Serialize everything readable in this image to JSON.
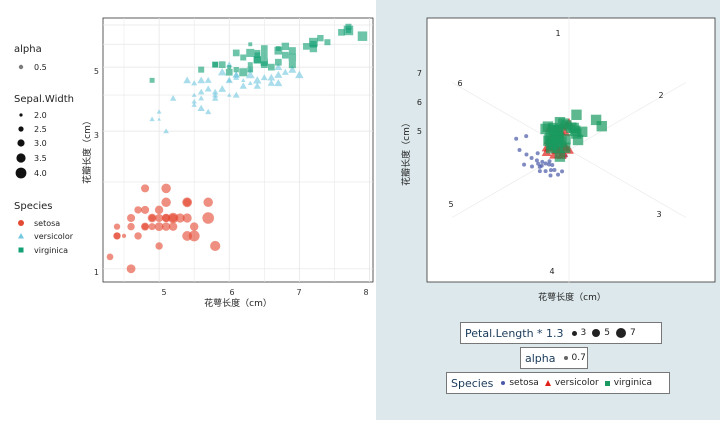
{
  "left_chart": {
    "xlabel": "花萼长度（cm）",
    "ylabel": "花瓣长度（cm）",
    "xticks": [
      "5",
      "6",
      "7",
      "8"
    ],
    "yticks": [
      "1",
      "3",
      "5"
    ],
    "legend": {
      "alpha_title": "alpha",
      "alpha_value": "0.5",
      "size_title": "Sepal.Width",
      "size_labels": [
        "2.0",
        "2.5",
        "3.0",
        "3.5",
        "4.0"
      ],
      "species_title": "Species",
      "species_labels": [
        "setosa",
        "versicolor",
        "virginica"
      ]
    }
  },
  "right_chart": {
    "xlabel": "花萼长度（cm）",
    "ylabel": "花瓣长度（cm）",
    "radial_labels": [
      "1",
      "2",
      "3",
      "4",
      "5",
      "6"
    ],
    "yticks": [
      "5",
      "6",
      "7"
    ],
    "legend_size": {
      "title": "Petal.Length * 1.3",
      "labels": [
        "3",
        "5",
        "7"
      ]
    },
    "legend_alpha": {
      "title": "alpha",
      "value": "0.7"
    },
    "legend_species": {
      "title": "Species",
      "labels": [
        "setosa",
        "versicolor",
        "virginica"
      ]
    }
  },
  "colors": {
    "setosa": "#e34a33",
    "versicolor": "#74c8e0",
    "virginica": "#14a075",
    "setosa_right": "#4a5aa8",
    "versicolor_right": "#e0201a",
    "virginica_right": "#1a9a60"
  },
  "chart_data": [
    {
      "type": "scatter",
      "title": "",
      "xlabel": "花萼长度（cm）",
      "ylabel": "花瓣长度（cm）",
      "xlim": [
        4.2,
        8.05
      ],
      "ylim": [
        0.9,
        7.4
      ],
      "y_scale": "log",
      "series": [
        {
          "name": "setosa",
          "shape": "circle",
          "x": [
            4.3,
            4.4,
            4.4,
            4.4,
            4.5,
            4.6,
            4.6,
            4.6,
            4.7,
            4.7,
            4.8,
            4.8,
            4.8,
            4.8,
            4.9,
            4.9,
            4.9,
            5.0,
            5.0,
            5.0,
            5.0,
            5.1,
            5.1,
            5.1,
            5.1,
            5.1,
            5.2,
            5.2,
            5.2,
            5.3,
            5.4,
            5.4,
            5.4,
            5.4,
            5.5,
            5.5,
            5.7,
            5.7,
            5.8
          ],
          "y": [
            1.1,
            1.3,
            1.4,
            1.3,
            1.3,
            1.0,
            1.4,
            1.5,
            1.3,
            1.6,
            1.4,
            1.6,
            1.9,
            1.4,
            1.5,
            1.4,
            1.5,
            1.6,
            1.4,
            1.5,
            1.2,
            1.5,
            1.4,
            1.9,
            1.7,
            1.5,
            1.4,
            1.5,
            1.5,
            1.5,
            1.7,
            1.3,
            1.5,
            1.7,
            1.3,
            1.4,
            1.7,
            1.5,
            1.2
          ],
          "size": [
            3.0,
            3.2,
            2.9,
            3.0,
            2.3,
            3.6,
            3.2,
            3.4,
            3.2,
            3.2,
            3.4,
            3.4,
            3.4,
            3.0,
            3.0,
            3.1,
            3.6,
            3.5,
            3.6,
            3.4,
            3.2,
            3.5,
            3.5,
            3.8,
            3.8,
            3.3,
            3.5,
            4.1,
            3.4,
            3.7,
            3.9,
            3.9,
            3.7,
            3.4,
            4.2,
            3.5,
            3.8,
            4.4,
            4.0
          ]
        },
        {
          "name": "versicolor",
          "shape": "triangle",
          "x": [
            4.9,
            5.0,
            5.0,
            5.1,
            5.5,
            5.5,
            5.6,
            5.6,
            5.7,
            5.7,
            5.8,
            5.8,
            5.9,
            6.0,
            6.0,
            6.1,
            6.1,
            6.2,
            6.3,
            6.3,
            6.4,
            6.5,
            6.6,
            6.7,
            6.7,
            6.8,
            6.9,
            7.0,
            5.2,
            5.4,
            5.5,
            5.6,
            6.0,
            6.1,
            6.2,
            6.3,
            6.4,
            5.8,
            5.9,
            6.6,
            6.7,
            6.1,
            5.7,
            6.0,
            5.6,
            5.5
          ],
          "y": [
            3.3,
            3.5,
            3.3,
            3.0,
            4.0,
            4.4,
            3.6,
            4.5,
            4.2,
            4.5,
            4.1,
            4.0,
            4.2,
            4.0,
            4.5,
            4.0,
            4.7,
            4.5,
            4.4,
            4.9,
            4.3,
            4.6,
            4.4,
            4.4,
            5.0,
            4.8,
            4.9,
            4.7,
            3.9,
            4.5,
            3.7,
            3.9,
            4.5,
            4.7,
            4.3,
            4.7,
            4.5,
            3.9,
            4.8,
            4.6,
            4.7,
            4.6,
            3.5,
            5.1,
            4.1,
            3.8
          ],
          "size": [
            2.4,
            2.3,
            2.0,
            2.5,
            2.3,
            2.6,
            2.9,
            3.0,
            2.8,
            2.8,
            2.7,
            2.6,
            3.0,
            2.2,
            2.9,
            2.8,
            2.8,
            2.2,
            2.3,
            2.5,
            2.9,
            2.8,
            2.9,
            3.1,
            3.0,
            2.8,
            3.1,
            3.2,
            2.7,
            3.0,
            2.4,
            2.5,
            2.2,
            2.9,
            2.9,
            3.3,
            3.2,
            2.7,
            3.2,
            3.0,
            3.1,
            2.6,
            2.6,
            2.7,
            2.7,
            2.4
          ]
        },
        {
          "name": "virginica",
          "shape": "square",
          "x": [
            4.9,
            5.6,
            5.8,
            5.8,
            5.9,
            6.0,
            6.1,
            6.2,
            6.3,
            6.3,
            6.4,
            6.4,
            6.5,
            6.5,
            6.7,
            6.7,
            6.8,
            6.9,
            7.1,
            7.2,
            7.2,
            7.3,
            7.4,
            7.6,
            7.7,
            7.7,
            7.9,
            6.0,
            6.3,
            6.4,
            6.5,
            6.7,
            6.9,
            7.7,
            6.1,
            6.2,
            6.3,
            6.4,
            6.8,
            7.2,
            6.5,
            6.6,
            6.9
          ],
          "y": [
            4.5,
            4.9,
            5.1,
            5.1,
            5.1,
            5.0,
            5.6,
            5.4,
            5.6,
            6.0,
            5.6,
            5.3,
            5.8,
            5.5,
            5.7,
            5.8,
            5.9,
            5.7,
            5.9,
            6.0,
            6.1,
            6.3,
            6.1,
            6.6,
            6.7,
            6.7,
            6.4,
            4.8,
            4.9,
            5.3,
            5.2,
            5.2,
            5.1,
            6.9,
            4.9,
            4.8,
            5.1,
            5.5,
            5.5,
            5.8,
            5.1,
            5.0,
            5.4
          ],
          "size": [
            2.5,
            2.8,
            2.7,
            2.8,
            3.0,
            2.2,
            3.0,
            2.8,
            3.4,
            2.2,
            2.8,
            3.2,
            3.0,
            3.0,
            3.3,
            2.5,
            3.2,
            3.1,
            3.0,
            3.0,
            3.6,
            2.9,
            2.8,
            3.0,
            2.6,
            3.8,
            3.8,
            3.0,
            2.7,
            3.1,
            3.2,
            3.0,
            3.1,
            2.8,
            2.6,
            3.4,
            2.5,
            2.7,
            3.0,
            3.2,
            3.0,
            3.0,
            3.2
          ]
        }
      ]
    },
    {
      "type": "scatter",
      "coordinate_system": "radial",
      "title": "",
      "xlabel": "花萼长度（cm）",
      "ylabel": "花瓣长度（cm）",
      "theta_variable": "Sepal.Length",
      "theta_labels": [
        "1",
        "2",
        "3",
        "4",
        "5",
        "6"
      ],
      "theta_range": [
        1.0,
        7.0
      ],
      "r_range": [
        2.0,
        8.0
      ],
      "size_variable": "Petal.Length * 1.3",
      "series": [
        {
          "name": "setosa",
          "shape": "circle",
          "x": [
            4.3,
            4.4,
            4.5,
            4.6,
            4.7,
            4.8,
            4.8,
            4.9,
            4.9,
            5.0,
            5.0,
            5.0,
            5.1,
            5.1,
            5.1,
            5.2,
            5.2,
            5.3,
            5.4,
            5.4,
            5.5,
            5.7,
            5.8,
            4.6,
            5.0
          ],
          "y": [
            3.0,
            3.2,
            2.3,
            3.4,
            3.2,
            3.4,
            3.0,
            3.1,
            3.6,
            3.5,
            3.4,
            3.2,
            3.5,
            3.8,
            3.3,
            3.5,
            4.1,
            3.7,
            3.9,
            3.4,
            4.2,
            4.4,
            4.0,
            3.1,
            3.0
          ]
        },
        {
          "name": "versicolor",
          "shape": "triangle",
          "x": [
            4.9,
            5.0,
            5.0,
            5.1,
            5.2,
            5.4,
            5.5,
            5.5,
            5.6,
            5.6,
            5.7,
            5.7,
            5.8,
            5.8,
            5.9,
            6.0,
            6.0,
            6.1,
            6.2,
            6.3,
            6.4,
            6.5,
            6.6,
            6.7,
            6.8,
            6.9,
            7.0,
            5.5,
            6.1,
            6.3
          ],
          "y": [
            2.4,
            2.3,
            2.0,
            2.5,
            2.7,
            3.0,
            2.4,
            2.6,
            2.9,
            3.0,
            2.8,
            2.6,
            2.7,
            2.6,
            3.0,
            2.2,
            2.9,
            2.8,
            2.2,
            2.3,
            2.9,
            2.8,
            2.9,
            3.1,
            2.8,
            3.1,
            3.2,
            2.5,
            3.0,
            3.3
          ]
        },
        {
          "name": "virginica",
          "shape": "square",
          "x": [
            4.9,
            5.6,
            5.7,
            5.8,
            5.8,
            5.9,
            6.0,
            6.1,
            6.2,
            6.3,
            6.3,
            6.4,
            6.4,
            6.5,
            6.5,
            6.7,
            6.7,
            6.8,
            6.9,
            7.1,
            7.2,
            7.2,
            7.3,
            7.4,
            7.6,
            7.7,
            7.7,
            7.9,
            6.0,
            6.1,
            6.2,
            6.3,
            6.4
          ],
          "y": [
            2.5,
            2.8,
            2.5,
            2.7,
            2.8,
            3.0,
            2.2,
            3.0,
            2.8,
            3.4,
            2.7,
            2.8,
            3.2,
            3.0,
            3.0,
            3.3,
            2.5,
            3.2,
            3.1,
            3.0,
            3.0,
            3.6,
            2.9,
            2.8,
            3.0,
            2.6,
            3.8,
            3.8,
            3.0,
            2.6,
            3.4,
            2.5,
            3.1
          ]
        }
      ]
    }
  ]
}
